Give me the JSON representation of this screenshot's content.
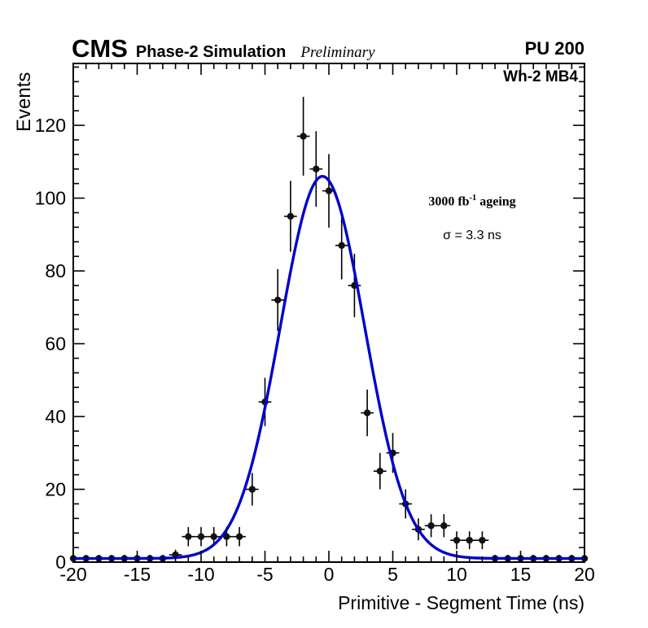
{
  "header": {
    "experiment": "CMS",
    "subtitle": "Phase-2 Simulation",
    "preliminary": "Preliminary",
    "pileup": "PU 200"
  },
  "plot": {
    "chamber_label": "Wh-2 MB4",
    "annotation": {
      "lumi_prefix": "3000 fb",
      "lumi_sup": "-1",
      "lumi_suffix": " ageing",
      "sigma_text": "σ = 3.3 ns"
    }
  },
  "chart_data": {
    "type": "scatter",
    "title": "",
    "xlabel": "Primitive - Segment Time (ns)",
    "ylabel": "Events",
    "xlim": [
      -20,
      20
    ],
    "ylim": [
      0,
      137
    ],
    "x_major_ticks": [
      -20,
      -15,
      -10,
      -5,
      0,
      5,
      10,
      15,
      20
    ],
    "x_minor_step": 1,
    "y_major_ticks": [
      0,
      20,
      40,
      60,
      80,
      100,
      120
    ],
    "y_minor_step": 4,
    "grid": false,
    "legend_position": "none",
    "marker_color": "#111111",
    "points": {
      "x": [
        -20,
        -19,
        -18,
        -17,
        -16,
        -15,
        -14,
        -13,
        -12,
        -11,
        -10,
        -9,
        -8,
        -7,
        -6,
        -5,
        -4,
        -3,
        -2,
        -1,
        0,
        1,
        2,
        3,
        4,
        5,
        6,
        7,
        8,
        9,
        10,
        11,
        12,
        13,
        14,
        15,
        16,
        17,
        18,
        19,
        20
      ],
      "y": [
        1,
        1,
        1,
        1,
        1,
        1,
        1,
        1,
        2,
        7,
        7,
        7,
        7,
        7,
        20,
        44,
        72,
        95,
        117,
        108,
        102,
        87,
        76,
        41,
        25,
        30,
        16,
        9,
        10,
        10,
        6,
        6,
        6,
        1,
        1,
        1,
        1,
        1,
        1,
        1,
        1
      ],
      "xerr": 0.5,
      "yerr_mode": "sqrt"
    },
    "fit": {
      "type": "gaussian",
      "mean": -0.5,
      "sigma": 3.3,
      "amplitude": 105,
      "baseline": 1,
      "color": "#0000cc"
    }
  }
}
